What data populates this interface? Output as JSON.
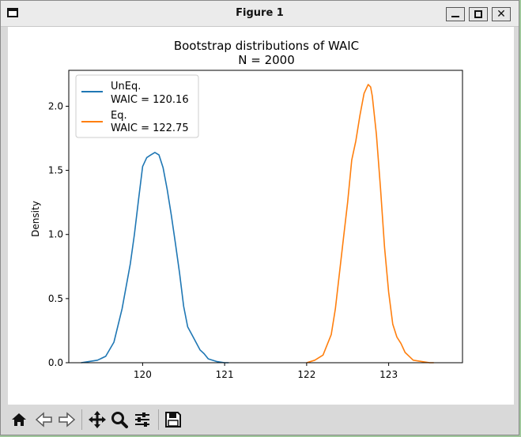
{
  "window": {
    "title": "Figure 1"
  },
  "toolbar": {
    "icons": [
      "home-icon",
      "back-icon",
      "forward-icon",
      "pan-icon",
      "zoom-icon",
      "configure-subplots-icon",
      "save-icon"
    ]
  },
  "chart_data": {
    "type": "line",
    "title": "Bootstrap distributions of WAIC",
    "subtitle": "N = 2000",
    "xlabel": "",
    "ylabel": "Density",
    "xlim": [
      119.1,
      123.9
    ],
    "ylim": [
      0,
      2.28
    ],
    "xticks": [
      "120",
      "121",
      "122",
      "123"
    ],
    "yticks": [
      "0.0",
      "0.5",
      "1.0",
      "1.5",
      "2.0"
    ],
    "grid": false,
    "legend_position": "upper-left",
    "series": [
      {
        "name": "UnEq.",
        "label_line2": "WAIC = 120.16",
        "color": "#1f77b4",
        "x": [
          119.25,
          119.35,
          119.45,
          119.55,
          119.65,
          119.75,
          119.85,
          119.9,
          119.95,
          120.0,
          120.05,
          120.1,
          120.15,
          120.2,
          120.25,
          120.3,
          120.35,
          120.4,
          120.45,
          120.5,
          120.55,
          120.6,
          120.65,
          120.7,
          120.75,
          120.8,
          120.9,
          121.0,
          121.05
        ],
        "y": [
          0.0,
          0.01,
          0.02,
          0.05,
          0.16,
          0.42,
          0.77,
          1.0,
          1.27,
          1.53,
          1.6,
          1.62,
          1.64,
          1.62,
          1.52,
          1.35,
          1.15,
          0.93,
          0.7,
          0.44,
          0.28,
          0.22,
          0.16,
          0.1,
          0.07,
          0.03,
          0.01,
          0.0,
          0.0
        ]
      },
      {
        "name": "Eq.",
        "label_line2": "WAIC = 122.75",
        "color": "#ff7f0e",
        "x": [
          122.0,
          122.1,
          122.2,
          122.3,
          122.35,
          122.4,
          122.45,
          122.5,
          122.55,
          122.6,
          122.65,
          122.7,
          122.75,
          122.78,
          122.8,
          122.85,
          122.9,
          122.95,
          123.0,
          123.05,
          123.1,
          123.15,
          123.2,
          123.25,
          123.3,
          123.4,
          123.5,
          123.55
        ],
        "y": [
          0.0,
          0.02,
          0.06,
          0.22,
          0.42,
          0.7,
          0.98,
          1.25,
          1.58,
          1.73,
          1.93,
          2.1,
          2.17,
          2.15,
          2.08,
          1.78,
          1.36,
          0.9,
          0.55,
          0.3,
          0.2,
          0.15,
          0.08,
          0.05,
          0.02,
          0.01,
          0.0,
          0.0
        ]
      }
    ]
  }
}
